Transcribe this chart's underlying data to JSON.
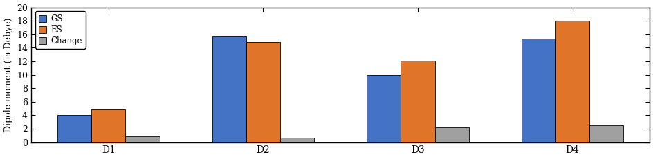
{
  "categories": [
    "D1",
    "D2",
    "D3",
    "D4"
  ],
  "GS": [
    4.0,
    15.7,
    10.0,
    15.4
  ],
  "ES": [
    4.9,
    14.9,
    12.1,
    18.0
  ],
  "Change": [
    0.9,
    0.7,
    2.2,
    2.5
  ],
  "bar_colors": {
    "GS": "#4472c4",
    "ES": "#e07428",
    "Change": "#a0a0a0"
  },
  "ylabel": "Dipole moment (in Debye)",
  "ylim": [
    0,
    20
  ],
  "yticks": [
    0,
    2,
    4,
    6,
    8,
    10,
    12,
    14,
    16,
    18,
    20
  ],
  "legend_labels": [
    "GS",
    "ES",
    "Change"
  ],
  "bar_width": 0.22,
  "figsize": [
    9.45,
    2.31
  ],
  "dpi": 100
}
